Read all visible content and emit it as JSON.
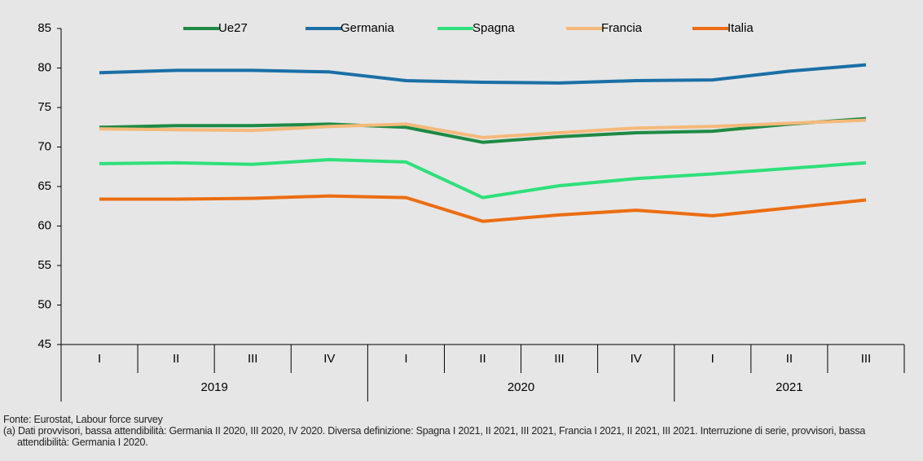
{
  "chart_data": {
    "type": "line",
    "categories": [
      "I",
      "II",
      "III",
      "IV",
      "I",
      "II",
      "III",
      "IV",
      "I",
      "II",
      "III"
    ],
    "groups": [
      {
        "name": "2019",
        "count": 4
      },
      {
        "name": "2020",
        "count": 4
      },
      {
        "name": "2021",
        "count": 3
      }
    ],
    "series": [
      {
        "name": "Ue27",
        "color": "#1e8a44",
        "values": [
          72.5,
          72.7,
          72.7,
          72.9,
          72.5,
          70.6,
          71.3,
          71.8,
          72.0,
          72.9,
          73.6
        ]
      },
      {
        "name": "Germania",
        "color": "#1a6fa6",
        "values": [
          79.4,
          79.7,
          79.7,
          79.5,
          78.4,
          78.2,
          78.1,
          78.4,
          78.5,
          79.6,
          80.4
        ]
      },
      {
        "name": "Spagna",
        "color": "#2ee07a",
        "values": [
          67.9,
          68.0,
          67.8,
          68.4,
          68.1,
          63.6,
          65.1,
          66.0,
          66.6,
          67.3,
          68.0
        ]
      },
      {
        "name": "Francia",
        "color": "#f5b97a",
        "values": [
          72.3,
          72.2,
          72.1,
          72.6,
          72.9,
          71.2,
          71.8,
          72.4,
          72.6,
          73.0,
          73.4
        ]
      },
      {
        "name": "Italia",
        "color": "#ec6d12",
        "values": [
          63.4,
          63.4,
          63.5,
          63.8,
          63.6,
          60.6,
          61.4,
          62.0,
          61.3,
          62.3,
          63.3
        ]
      }
    ],
    "ylim": [
      45,
      85
    ],
    "yticks": [
      45,
      50,
      55,
      60,
      65,
      70,
      75,
      80,
      85
    ],
    "legend": "top",
    "source": "Fonte: Eurostat, Labour force survey",
    "note": "(a) Dati provvisori, bassa attendibilità: Germania II 2020, III 2020, IV 2020. Diversa definizione: Spagna I 2021, II 2021, III 2021, Francia I 2021, II 2021, III 2021. Interruzione di serie, provvisori, bassa attendibilità: Germania I 2020."
  }
}
